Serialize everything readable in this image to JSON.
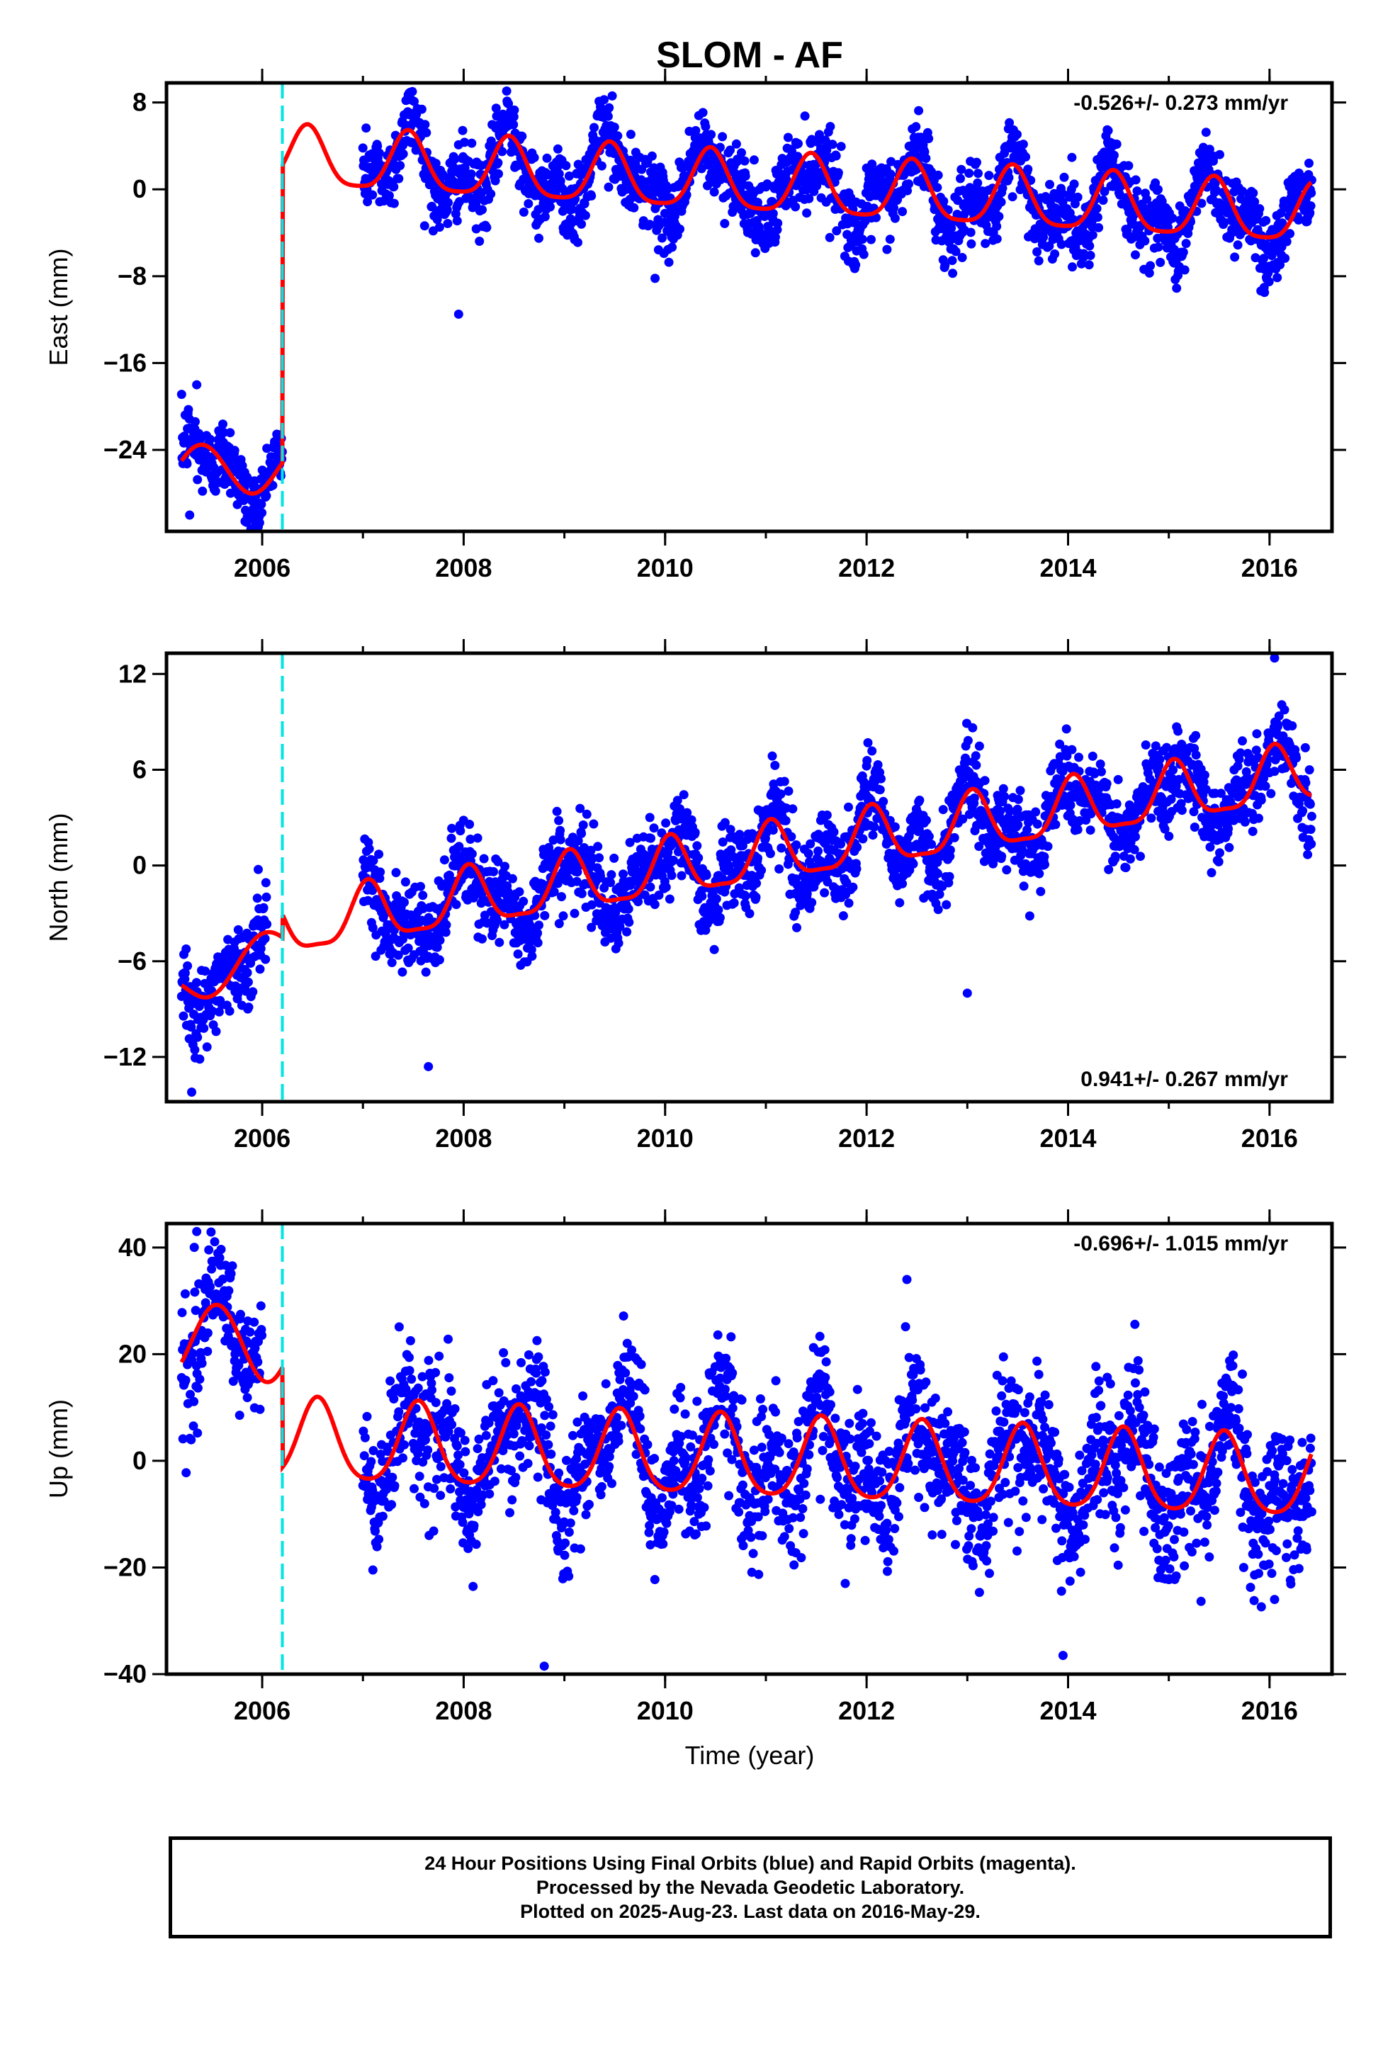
{
  "page": {
    "title": "SLOM - AF",
    "xlabel": "Time (year)",
    "caption": [
      "24 Hour Positions Using Final Orbits (blue) and Rapid Orbits (magenta).",
      "Processed by the Nevada Geodetic Laboratory.",
      "Plotted on 2025-Aug-23. Last data on 2016-May-29."
    ]
  },
  "colors": {
    "points": "#0000ff",
    "model": "#ff0000",
    "break": "#00e5e5",
    "axis": "#000000"
  },
  "chart_data": [
    {
      "type": "scatter",
      "name": "east",
      "ylabel": "East (mm)",
      "rate_text": "-0.526+/- 0.273 mm/yr",
      "rate_position": "top-right",
      "xlim": [
        2005.05,
        2016.62
      ],
      "ylim": [
        -31.5,
        9.8
      ],
      "xticks": [
        2006,
        2008,
        2010,
        2012,
        2014,
        2016
      ],
      "yticks": [
        8,
        0,
        -8,
        -16,
        -24
      ],
      "ytick_labels": [
        "8",
        "0",
        "−8",
        "−16",
        "−24"
      ],
      "equipment_change_x": 2006.2,
      "data_gap": [
        2006.2,
        2007.0
      ],
      "model": {
        "pre": {
          "x_start": 2005.2,
          "x_end": 2006.2,
          "y_start": -25.0,
          "y_end": -25.2,
          "annual_amp": 2.2,
          "annual_peak": 2005.4
        },
        "post": {
          "x_start": 2006.2,
          "x_end": 2016.42,
          "y_at_2007": 2.4,
          "rate": -0.526,
          "annual_amp": 2.7,
          "annual_peak": 2006.45,
          "semiannual_amp": 0.6
        }
      },
      "scatter_noise_sd": 1.7,
      "scatter_extremes": [
        [
          2005.28,
          -30.0
        ],
        [
          2005.35,
          -18.0
        ],
        [
          2007.95,
          -11.5
        ],
        [
          2009.9,
          -8.2
        ],
        [
          2015.95,
          -9.5
        ]
      ]
    },
    {
      "type": "scatter",
      "name": "north",
      "ylabel": "North (mm)",
      "rate_text": "0.941+/- 0.267 mm/yr",
      "rate_position": "bottom-right",
      "xlim": [
        2005.05,
        2016.62
      ],
      "ylim": [
        -14.8,
        13.3
      ],
      "xticks": [
        2006,
        2008,
        2010,
        2012,
        2014,
        2016
      ],
      "yticks": [
        12,
        6,
        0,
        -6,
        -12
      ],
      "ytick_labels": [
        "12",
        "6",
        "0",
        "−6",
        "−12"
      ],
      "equipment_change_x": 2006.2,
      "data_gap": [
        2006.05,
        2007.0
      ],
      "model": {
        "pre": {
          "x_start": 2005.2,
          "x_end": 2006.2,
          "y_start": -7.5,
          "y_end": -4.5,
          "annual_amp": 1.2,
          "annual_peak": 2006.0
        },
        "post": {
          "x_start": 2006.2,
          "x_end": 2016.42,
          "y_at_2007": -3.2,
          "rate": 0.941,
          "annual_amp": 1.8,
          "annual_peak": 2007.05,
          "semiannual_amp": 0.5
        }
      },
      "scatter_noise_sd": 1.3,
      "scatter_extremes": [
        [
          2005.3,
          -14.2
        ],
        [
          2007.65,
          -12.6
        ],
        [
          2016.05,
          13.0
        ],
        [
          2013.0,
          -8.0
        ]
      ]
    },
    {
      "type": "scatter",
      "name": "up",
      "ylabel": "Up (mm)",
      "rate_text": "-0.696+/- 1.015 mm/yr",
      "rate_position": "top-right",
      "xlim": [
        2005.05,
        2016.62
      ],
      "ylim": [
        -40,
        44.5
      ],
      "xticks": [
        2006,
        2008,
        2010,
        2012,
        2014,
        2016
      ],
      "yticks": [
        40,
        20,
        0,
        -20,
        -40
      ],
      "ytick_labels": [
        "40",
        "20",
        "0",
        "−20",
        "−40"
      ],
      "equipment_change_x": 2006.2,
      "data_gap": [
        2006.0,
        2007.0
      ],
      "model": {
        "pre": {
          "x_start": 2005.2,
          "x_end": 2006.2,
          "y_start": 18.5,
          "y_end": 17.5,
          "annual_amp": 7.0,
          "annual_peak": 2005.55,
          "trend": 0.0
        },
        "post": {
          "x_start": 2006.2,
          "x_end": 2016.42,
          "y_at_2007": 3.0,
          "rate": -0.696,
          "annual_amp": 7.5,
          "annual_peak": 2006.55,
          "semiannual_amp": 1.2
        }
      },
      "scatter_noise_sd": 6.0,
      "scatter_extremes": [
        [
          2005.35,
          43.0
        ],
        [
          2013.95,
          -36.5
        ],
        [
          2008.8,
          -38.5
        ],
        [
          2012.4,
          34.0
        ],
        [
          2016.05,
          -26.0
        ]
      ]
    }
  ]
}
